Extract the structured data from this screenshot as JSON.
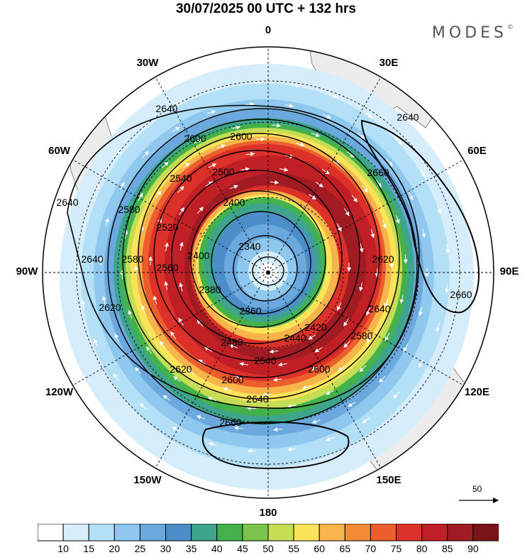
{
  "title": "30/07/2025  00 UTC  + 132 hrs",
  "brand": "MODES",
  "brand_mark": "©",
  "longitude_labels": [
    {
      "text": "0",
      "lon": 0
    },
    {
      "text": "30E",
      "lon": 30
    },
    {
      "text": "60E",
      "lon": 60
    },
    {
      "text": "90E",
      "lon": 90
    },
    {
      "text": "120E",
      "lon": 120
    },
    {
      "text": "150E",
      "lon": 150
    },
    {
      "text": "180",
      "lon": 180
    },
    {
      "text": "150W",
      "lon": -150
    },
    {
      "text": "120W",
      "lon": -120
    },
    {
      "text": "90W",
      "lon": -90
    },
    {
      "text": "60W",
      "lon": -60
    },
    {
      "text": "30W",
      "lon": -30
    }
  ],
  "contour_labels": [
    "2640",
    "2600",
    "2600",
    "2660",
    "2540",
    "2500",
    "2580",
    "2520",
    "2400",
    "2340",
    "2400",
    "2580",
    "2560",
    "2380",
    "2360",
    "2420",
    "2440",
    "2480",
    "2540",
    "2620",
    "2640",
    "2660",
    "2620",
    "2600",
    "2580",
    "2620",
    "2640",
    "2600",
    "2640",
    "2660",
    "2640",
    "2640"
  ],
  "vector_reference": "50",
  "colorbar": {
    "ticks": [
      "10",
      "15",
      "20",
      "25",
      "30",
      "35",
      "40",
      "45",
      "50",
      "55",
      "60",
      "65",
      "70",
      "75",
      "80",
      "85",
      "90"
    ],
    "colors": [
      "#ffffff",
      "#d6eefb",
      "#b3e0f7",
      "#8ec8ee",
      "#6ba8dd",
      "#4c8ec8",
      "#3ea58c",
      "#43b24a",
      "#7cc34d",
      "#c5dc55",
      "#fbe35a",
      "#f7b44b",
      "#f28b36",
      "#ec5e2d",
      "#dc3129",
      "#c01f26",
      "#a11b22",
      "#7a1418"
    ]
  }
}
